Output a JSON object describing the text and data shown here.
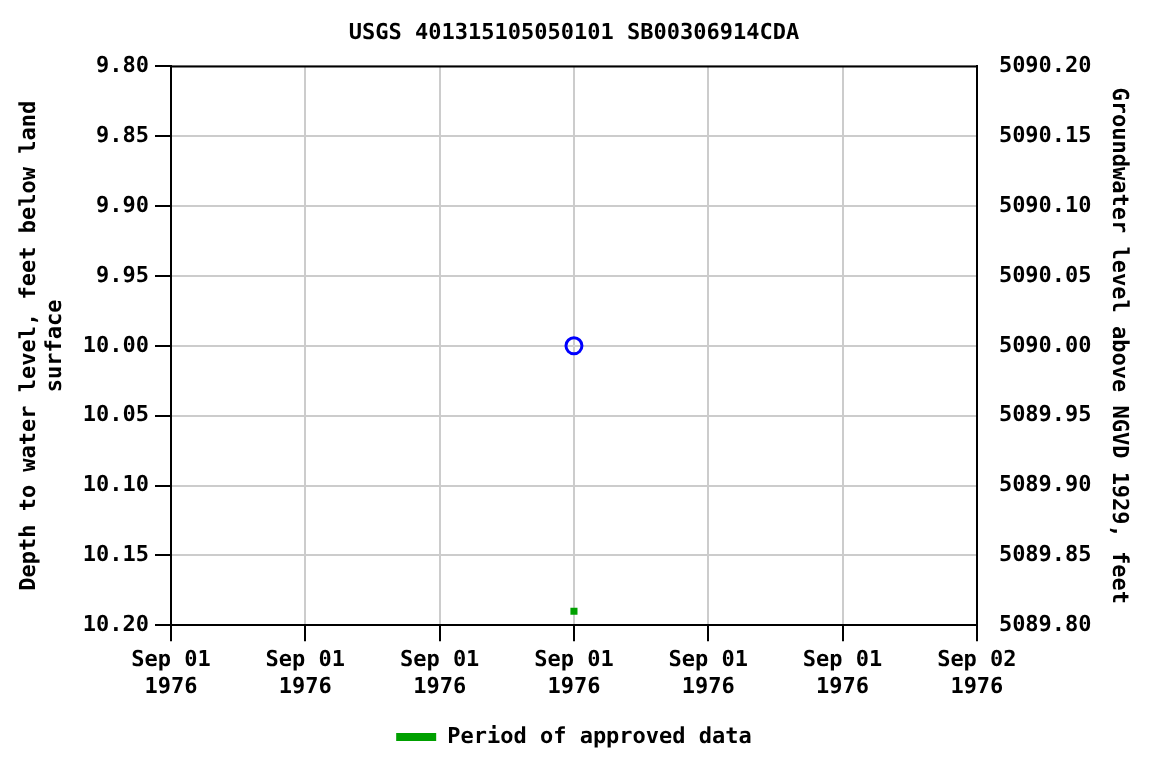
{
  "chart_data": {
    "type": "scatter",
    "title": "USGS 401315105050101 SB00306914CDA",
    "xlabel": null,
    "ylabel": "Depth to water level, feet below land\nsurface",
    "y2label": "Groundwater level above NGVD 1929, feet",
    "categories": [
      "Sep 01\n1976",
      "Sep 01\n1976",
      "Sep 01\n1976",
      "Sep 01\n1976",
      "Sep 01\n1976",
      "Sep 01\n1976",
      "Sep 02\n1976"
    ],
    "series": [
      {
        "color": "#0000ff",
        "values": [
          null,
          null,
          null,
          10.0,
          null,
          null,
          null
        ],
        "marker": "circle"
      },
      {
        "name": "Period of approved data",
        "color": "#00a000",
        "values": [
          null,
          null,
          null,
          10.19,
          null,
          null,
          null
        ],
        "marker": "square"
      }
    ],
    "ylim": [
      10.2,
      9.8
    ],
    "yticks": [
      {
        "value": 9.8,
        "label": "9.80"
      },
      {
        "value": 9.85,
        "label": "9.85"
      },
      {
        "value": 9.9,
        "label": "9.90"
      },
      {
        "value": 9.95,
        "label": "9.95"
      },
      {
        "value": 10.0,
        "label": "10.00"
      },
      {
        "value": 10.05,
        "label": "10.05"
      },
      {
        "value": 10.1,
        "label": "10.10"
      },
      {
        "value": 10.15,
        "label": "10.15"
      },
      {
        "value": 10.2,
        "label": "10.20"
      }
    ],
    "y2lim": [
      5089.8,
      5090.2
    ],
    "y2ticks": [
      {
        "value": 5089.8,
        "label": "5089.80"
      },
      {
        "value": 5089.85,
        "label": "5089.85"
      },
      {
        "value": 5089.9,
        "label": "5089.90"
      },
      {
        "value": 5089.95,
        "label": "5089.95"
      },
      {
        "value": 5090.0,
        "label": "5090.00"
      },
      {
        "value": 5090.05,
        "label": "5090.05"
      },
      {
        "value": 5090.1,
        "label": "5090.10"
      },
      {
        "value": 5090.15,
        "label": "5090.15"
      },
      {
        "value": 5090.2,
        "label": "5090.20"
      }
    ],
    "grid": true,
    "legend": "bottom"
  }
}
